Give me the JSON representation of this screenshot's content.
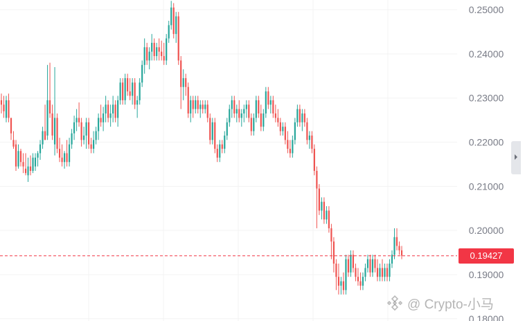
{
  "chart_data": {
    "type": "candlestick",
    "y_axis": {
      "position": "right",
      "ticks": [
        "0.25000",
        "0.24000",
        "0.23000",
        "0.22000",
        "0.21000",
        "0.20000",
        "0.19000",
        "0.18000"
      ],
      "ylim": [
        0.1795,
        0.2522
      ]
    },
    "grid": true,
    "last_price": {
      "value": 0.19427,
      "label": "0.19427"
    },
    "colors": {
      "up": "#26a69a",
      "down": "#ef5350",
      "last_price": "#f23645",
      "axis_text": "#787b86",
      "grid": "#f3f3f3"
    },
    "candles": [
      {
        "o": 0.2295,
        "h": 0.231,
        "l": 0.2265,
        "c": 0.2285
      },
      {
        "o": 0.2285,
        "h": 0.2305,
        "l": 0.2255,
        "c": 0.227
      },
      {
        "o": 0.2255,
        "h": 0.2305,
        "l": 0.2245,
        "c": 0.2295
      },
      {
        "o": 0.2295,
        "h": 0.231,
        "l": 0.2245,
        "c": 0.2255
      },
      {
        "o": 0.2255,
        "h": 0.2255,
        "l": 0.2205,
        "c": 0.222
      },
      {
        "o": 0.2205,
        "h": 0.2225,
        "l": 0.2185,
        "c": 0.219
      },
      {
        "o": 0.2195,
        "h": 0.2205,
        "l": 0.2135,
        "c": 0.2145
      },
      {
        "o": 0.2145,
        "h": 0.2195,
        "l": 0.214,
        "c": 0.218
      },
      {
        "o": 0.218,
        "h": 0.2185,
        "l": 0.2145,
        "c": 0.2155
      },
      {
        "o": 0.2155,
        "h": 0.2175,
        "l": 0.213,
        "c": 0.2145
      },
      {
        "o": 0.214,
        "h": 0.2175,
        "l": 0.2125,
        "c": 0.213
      },
      {
        "o": 0.2125,
        "h": 0.2165,
        "l": 0.211,
        "c": 0.2145
      },
      {
        "o": 0.2145,
        "h": 0.217,
        "l": 0.2125,
        "c": 0.2135
      },
      {
        "o": 0.2135,
        "h": 0.2175,
        "l": 0.213,
        "c": 0.2165
      },
      {
        "o": 0.2145,
        "h": 0.2175,
        "l": 0.2135,
        "c": 0.2165
      },
      {
        "o": 0.2165,
        "h": 0.218,
        "l": 0.2145,
        "c": 0.2175
      },
      {
        "o": 0.2175,
        "h": 0.2205,
        "l": 0.216,
        "c": 0.2195
      },
      {
        "o": 0.2195,
        "h": 0.2235,
        "l": 0.2185,
        "c": 0.2225
      },
      {
        "o": 0.2225,
        "h": 0.2285,
        "l": 0.2205,
        "c": 0.2205
      },
      {
        "o": 0.2215,
        "h": 0.2375,
        "l": 0.2205,
        "c": 0.2295
      },
      {
        "o": 0.2295,
        "h": 0.238,
        "l": 0.2255,
        "c": 0.2265
      },
      {
        "o": 0.2265,
        "h": 0.2285,
        "l": 0.2205,
        "c": 0.2215
      },
      {
        "o": 0.2195,
        "h": 0.237,
        "l": 0.217,
        "c": 0.2255
      },
      {
        "o": 0.2255,
        "h": 0.2265,
        "l": 0.2175,
        "c": 0.2185
      },
      {
        "o": 0.2185,
        "h": 0.221,
        "l": 0.2155,
        "c": 0.2165
      },
      {
        "o": 0.2165,
        "h": 0.2195,
        "l": 0.2145,
        "c": 0.2155
      },
      {
        "o": 0.2155,
        "h": 0.218,
        "l": 0.214,
        "c": 0.2175
      },
      {
        "o": 0.2175,
        "h": 0.2205,
        "l": 0.2145,
        "c": 0.2155
      },
      {
        "o": 0.2155,
        "h": 0.221,
        "l": 0.2145,
        "c": 0.2195
      },
      {
        "o": 0.2195,
        "h": 0.223,
        "l": 0.2185,
        "c": 0.222
      },
      {
        "o": 0.222,
        "h": 0.226,
        "l": 0.2205,
        "c": 0.2245
      },
      {
        "o": 0.2245,
        "h": 0.2275,
        "l": 0.2225,
        "c": 0.2255
      },
      {
        "o": 0.2255,
        "h": 0.229,
        "l": 0.2235,
        "c": 0.2245
      },
      {
        "o": 0.2245,
        "h": 0.2255,
        "l": 0.219,
        "c": 0.2205
      },
      {
        "o": 0.2205,
        "h": 0.2235,
        "l": 0.2195,
        "c": 0.2215
      },
      {
        "o": 0.2215,
        "h": 0.2255,
        "l": 0.2185,
        "c": 0.2245
      },
      {
        "o": 0.2245,
        "h": 0.2255,
        "l": 0.2185,
        "c": 0.2195
      },
      {
        "o": 0.2195,
        "h": 0.221,
        "l": 0.2175,
        "c": 0.2185
      },
      {
        "o": 0.2185,
        "h": 0.2225,
        "l": 0.2175,
        "c": 0.2205
      },
      {
        "o": 0.2205,
        "h": 0.2235,
        "l": 0.2195,
        "c": 0.2225
      },
      {
        "o": 0.2225,
        "h": 0.2265,
        "l": 0.2205,
        "c": 0.2255
      },
      {
        "o": 0.2255,
        "h": 0.2285,
        "l": 0.2235,
        "c": 0.2245
      },
      {
        "o": 0.2245,
        "h": 0.228,
        "l": 0.2225,
        "c": 0.2265
      },
      {
        "o": 0.2265,
        "h": 0.2305,
        "l": 0.2245,
        "c": 0.2285
      },
      {
        "o": 0.2285,
        "h": 0.2295,
        "l": 0.2245,
        "c": 0.2255
      },
      {
        "o": 0.2255,
        "h": 0.2285,
        "l": 0.2235,
        "c": 0.2265
      },
      {
        "o": 0.2265,
        "h": 0.2305,
        "l": 0.2245,
        "c": 0.2285
      },
      {
        "o": 0.2285,
        "h": 0.2295,
        "l": 0.2245,
        "c": 0.2255
      },
      {
        "o": 0.2255,
        "h": 0.2305,
        "l": 0.2235,
        "c": 0.2295
      },
      {
        "o": 0.2295,
        "h": 0.2345,
        "l": 0.2285,
        "c": 0.2335
      },
      {
        "o": 0.2335,
        "h": 0.2345,
        "l": 0.2285,
        "c": 0.2295
      },
      {
        "o": 0.2295,
        "h": 0.2355,
        "l": 0.2285,
        "c": 0.2345
      },
      {
        "o": 0.2345,
        "h": 0.2355,
        "l": 0.2305,
        "c": 0.2315
      },
      {
        "o": 0.2315,
        "h": 0.2345,
        "l": 0.2295,
        "c": 0.2305
      },
      {
        "o": 0.2305,
        "h": 0.2345,
        "l": 0.2285,
        "c": 0.2335
      },
      {
        "o": 0.2335,
        "h": 0.2345,
        "l": 0.2275,
        "c": 0.2285
      },
      {
        "o": 0.2285,
        "h": 0.2305,
        "l": 0.2255,
        "c": 0.2295
      },
      {
        "o": 0.2295,
        "h": 0.2345,
        "l": 0.2285,
        "c": 0.2335
      },
      {
        "o": 0.2335,
        "h": 0.2385,
        "l": 0.2325,
        "c": 0.2375
      },
      {
        "o": 0.2375,
        "h": 0.2435,
        "l": 0.2355,
        "c": 0.2415
      },
      {
        "o": 0.2415,
        "h": 0.2425,
        "l": 0.2375,
        "c": 0.2385
      },
      {
        "o": 0.2385,
        "h": 0.2415,
        "l": 0.2365,
        "c": 0.2405
      },
      {
        "o": 0.2405,
        "h": 0.2445,
        "l": 0.2385,
        "c": 0.2425
      },
      {
        "o": 0.2425,
        "h": 0.2435,
        "l": 0.2385,
        "c": 0.2395
      },
      {
        "o": 0.2395,
        "h": 0.2425,
        "l": 0.2385,
        "c": 0.2415
      },
      {
        "o": 0.2415,
        "h": 0.2435,
        "l": 0.2385,
        "c": 0.2405
      },
      {
        "o": 0.2405,
        "h": 0.243,
        "l": 0.2385,
        "c": 0.2395
      },
      {
        "o": 0.2395,
        "h": 0.2425,
        "l": 0.2375,
        "c": 0.2385
      },
      {
        "o": 0.2385,
        "h": 0.2445,
        "l": 0.2375,
        "c": 0.2435
      },
      {
        "o": 0.2435,
        "h": 0.2475,
        "l": 0.2425,
        "c": 0.2465
      },
      {
        "o": 0.2465,
        "h": 0.252,
        "l": 0.2455,
        "c": 0.2505
      },
      {
        "o": 0.2505,
        "h": 0.2515,
        "l": 0.2435,
        "c": 0.2445
      },
      {
        "o": 0.2445,
        "h": 0.2495,
        "l": 0.2425,
        "c": 0.2485
      },
      {
        "o": 0.2485,
        "h": 0.2495,
        "l": 0.2375,
        "c": 0.2385
      },
      {
        "o": 0.2385,
        "h": 0.2395,
        "l": 0.2275,
        "c": 0.2325
      },
      {
        "o": 0.2325,
        "h": 0.2365,
        "l": 0.2295,
        "c": 0.2345
      },
      {
        "o": 0.2345,
        "h": 0.2355,
        "l": 0.2305,
        "c": 0.2325
      },
      {
        "o": 0.2325,
        "h": 0.2335,
        "l": 0.2255,
        "c": 0.2265
      },
      {
        "o": 0.2265,
        "h": 0.2305,
        "l": 0.2245,
        "c": 0.2295
      },
      {
        "o": 0.2295,
        "h": 0.2305,
        "l": 0.2255,
        "c": 0.2275
      },
      {
        "o": 0.2275,
        "h": 0.2305,
        "l": 0.2265,
        "c": 0.2295
      },
      {
        "o": 0.2295,
        "h": 0.2305,
        "l": 0.2265,
        "c": 0.2275
      },
      {
        "o": 0.2275,
        "h": 0.2295,
        "l": 0.2255,
        "c": 0.2285
      },
      {
        "o": 0.2285,
        "h": 0.2295,
        "l": 0.2265,
        "c": 0.2275
      },
      {
        "o": 0.2275,
        "h": 0.2295,
        "l": 0.2265,
        "c": 0.2285
      },
      {
        "o": 0.2285,
        "h": 0.2295,
        "l": 0.2245,
        "c": 0.2255
      },
      {
        "o": 0.2255,
        "h": 0.2265,
        "l": 0.2195,
        "c": 0.2205
      },
      {
        "o": 0.2205,
        "h": 0.2255,
        "l": 0.2195,
        "c": 0.2245
      },
      {
        "o": 0.2245,
        "h": 0.2255,
        "l": 0.2175,
        "c": 0.2185
      },
      {
        "o": 0.2185,
        "h": 0.2195,
        "l": 0.2155,
        "c": 0.2165
      },
      {
        "o": 0.2165,
        "h": 0.2205,
        "l": 0.2155,
        "c": 0.2195
      },
      {
        "o": 0.2195,
        "h": 0.2205,
        "l": 0.2175,
        "c": 0.2185
      },
      {
        "o": 0.2185,
        "h": 0.2225,
        "l": 0.2175,
        "c": 0.2215
      },
      {
        "o": 0.2215,
        "h": 0.2255,
        "l": 0.2205,
        "c": 0.2245
      },
      {
        "o": 0.2245,
        "h": 0.2285,
        "l": 0.2235,
        "c": 0.2275
      },
      {
        "o": 0.2275,
        "h": 0.2305,
        "l": 0.2255,
        "c": 0.2295
      },
      {
        "o": 0.2295,
        "h": 0.2305,
        "l": 0.2255,
        "c": 0.2265
      },
      {
        "o": 0.2265,
        "h": 0.2285,
        "l": 0.2245,
        "c": 0.2275
      },
      {
        "o": 0.2275,
        "h": 0.2295,
        "l": 0.2245,
        "c": 0.2255
      },
      {
        "o": 0.2255,
        "h": 0.2275,
        "l": 0.2235,
        "c": 0.2265
      },
      {
        "o": 0.2265,
        "h": 0.2285,
        "l": 0.2245,
        "c": 0.2275
      },
      {
        "o": 0.2275,
        "h": 0.2295,
        "l": 0.2255,
        "c": 0.2285
      },
      {
        "o": 0.2285,
        "h": 0.2295,
        "l": 0.2245,
        "c": 0.2255
      },
      {
        "o": 0.2255,
        "h": 0.2265,
        "l": 0.2215,
        "c": 0.2225
      },
      {
        "o": 0.2225,
        "h": 0.2265,
        "l": 0.2215,
        "c": 0.2255
      },
      {
        "o": 0.2255,
        "h": 0.2305,
        "l": 0.2245,
        "c": 0.2295
      },
      {
        "o": 0.2295,
        "h": 0.2305,
        "l": 0.2255,
        "c": 0.2265
      },
      {
        "o": 0.2265,
        "h": 0.2285,
        "l": 0.2225,
        "c": 0.2235
      },
      {
        "o": 0.2235,
        "h": 0.2275,
        "l": 0.2225,
        "c": 0.2265
      },
      {
        "o": 0.2265,
        "h": 0.2325,
        "l": 0.2255,
        "c": 0.2315
      },
      {
        "o": 0.2315,
        "h": 0.2325,
        "l": 0.2275,
        "c": 0.2285
      },
      {
        "o": 0.2285,
        "h": 0.2305,
        "l": 0.2265,
        "c": 0.2295
      },
      {
        "o": 0.2295,
        "h": 0.2305,
        "l": 0.2255,
        "c": 0.2265
      },
      {
        "o": 0.2265,
        "h": 0.2285,
        "l": 0.2245,
        "c": 0.2255
      },
      {
        "o": 0.2255,
        "h": 0.2275,
        "l": 0.2235,
        "c": 0.2245
      },
      {
        "o": 0.2245,
        "h": 0.2255,
        "l": 0.2215,
        "c": 0.2225
      },
      {
        "o": 0.2225,
        "h": 0.2245,
        "l": 0.2215,
        "c": 0.2235
      },
      {
        "o": 0.2235,
        "h": 0.2245,
        "l": 0.2195,
        "c": 0.2205
      },
      {
        "o": 0.2205,
        "h": 0.2225,
        "l": 0.2175,
        "c": 0.2185
      },
      {
        "o": 0.2185,
        "h": 0.2205,
        "l": 0.2165,
        "c": 0.2175
      },
      {
        "o": 0.2175,
        "h": 0.2215,
        "l": 0.2165,
        "c": 0.2205
      },
      {
        "o": 0.2205,
        "h": 0.2255,
        "l": 0.2195,
        "c": 0.2245
      },
      {
        "o": 0.2245,
        "h": 0.2285,
        "l": 0.2235,
        "c": 0.2275
      },
      {
        "o": 0.2275,
        "h": 0.2285,
        "l": 0.2235,
        "c": 0.2245
      },
      {
        "o": 0.2245,
        "h": 0.2275,
        "l": 0.2225,
        "c": 0.2265
      },
      {
        "o": 0.2265,
        "h": 0.2275,
        "l": 0.2235,
        "c": 0.2245
      },
      {
        "o": 0.2245,
        "h": 0.2255,
        "l": 0.2195,
        "c": 0.2205
      },
      {
        "o": 0.2205,
        "h": 0.2225,
        "l": 0.2185,
        "c": 0.2215
      },
      {
        "o": 0.2215,
        "h": 0.2225,
        "l": 0.2175,
        "c": 0.2185
      },
      {
        "o": 0.2185,
        "h": 0.2195,
        "l": 0.2125,
        "c": 0.2135
      },
      {
        "o": 0.2135,
        "h": 0.2145,
        "l": 0.2005,
        "c": 0.2095
      },
      {
        "o": 0.2095,
        "h": 0.2105,
        "l": 0.2035,
        "c": 0.2045
      },
      {
        "o": 0.2045,
        "h": 0.2075,
        "l": 0.2025,
        "c": 0.2065
      },
      {
        "o": 0.2065,
        "h": 0.2075,
        "l": 0.2015,
        "c": 0.2025
      },
      {
        "o": 0.2025,
        "h": 0.2055,
        "l": 0.2015,
        "c": 0.2045
      },
      {
        "o": 0.2045,
        "h": 0.2055,
        "l": 0.1995,
        "c": 0.2005
      },
      {
        "o": 0.2005,
        "h": 0.2015,
        "l": 0.1935,
        "c": 0.1975
      },
      {
        "o": 0.1975,
        "h": 0.1985,
        "l": 0.1905,
        "c": 0.1925
      },
      {
        "o": 0.1925,
        "h": 0.1935,
        "l": 0.1865,
        "c": 0.1895
      },
      {
        "o": 0.1895,
        "h": 0.1925,
        "l": 0.1855,
        "c": 0.1875
      },
      {
        "o": 0.1875,
        "h": 0.1895,
        "l": 0.1855,
        "c": 0.1885
      },
      {
        "o": 0.1885,
        "h": 0.1905,
        "l": 0.1855,
        "c": 0.1865
      },
      {
        "o": 0.1865,
        "h": 0.1945,
        "l": 0.1855,
        "c": 0.1935
      },
      {
        "o": 0.1935,
        "h": 0.1945,
        "l": 0.1895,
        "c": 0.1905
      },
      {
        "o": 0.1905,
        "h": 0.1955,
        "l": 0.1895,
        "c": 0.1945
      },
      {
        "o": 0.1945,
        "h": 0.1955,
        "l": 0.1905,
        "c": 0.1915
      },
      {
        "o": 0.1915,
        "h": 0.1925,
        "l": 0.1885,
        "c": 0.1895
      },
      {
        "o": 0.1895,
        "h": 0.1915,
        "l": 0.1875,
        "c": 0.1885
      },
      {
        "o": 0.1885,
        "h": 0.1905,
        "l": 0.1865,
        "c": 0.1875
      },
      {
        "o": 0.1875,
        "h": 0.1905,
        "l": 0.1865,
        "c": 0.1895
      },
      {
        "o": 0.1895,
        "h": 0.1925,
        "l": 0.1885,
        "c": 0.1915
      },
      {
        "o": 0.1915,
        "h": 0.1945,
        "l": 0.1905,
        "c": 0.1935
      },
      {
        "o": 0.1935,
        "h": 0.1945,
        "l": 0.1895,
        "c": 0.1905
      },
      {
        "o": 0.1905,
        "h": 0.1945,
        "l": 0.1895,
        "c": 0.1935
      },
      {
        "o": 0.1935,
        "h": 0.1945,
        "l": 0.1905,
        "c": 0.1915
      },
      {
        "o": 0.1915,
        "h": 0.1935,
        "l": 0.1885,
        "c": 0.1895
      },
      {
        "o": 0.1895,
        "h": 0.1925,
        "l": 0.1885,
        "c": 0.1915
      },
      {
        "o": 0.1915,
        "h": 0.1935,
        "l": 0.1885,
        "c": 0.1895
      },
      {
        "o": 0.1895,
        "h": 0.1925,
        "l": 0.1885,
        "c": 0.1915
      },
      {
        "o": 0.1915,
        "h": 0.1925,
        "l": 0.1885,
        "c": 0.1895
      },
      {
        "o": 0.1895,
        "h": 0.1935,
        "l": 0.1885,
        "c": 0.1925
      },
      {
        "o": 0.1925,
        "h": 0.1955,
        "l": 0.1915,
        "c": 0.1945
      },
      {
        "o": 0.1945,
        "h": 0.2005,
        "l": 0.1935,
        "c": 0.1985
      },
      {
        "o": 0.1985,
        "h": 0.2005,
        "l": 0.1955,
        "c": 0.1965
      },
      {
        "o": 0.1965,
        "h": 0.1975,
        "l": 0.1945,
        "c": 0.1955
      },
      {
        "o": 0.1955,
        "h": 0.1965,
        "l": 0.1935,
        "c": 0.1943
      }
    ]
  },
  "watermark": {
    "logo_icon": "binance-square-logo",
    "text": "@ Crypto-小马"
  },
  "side_handle": {
    "icon": "chevron-right-icon"
  }
}
